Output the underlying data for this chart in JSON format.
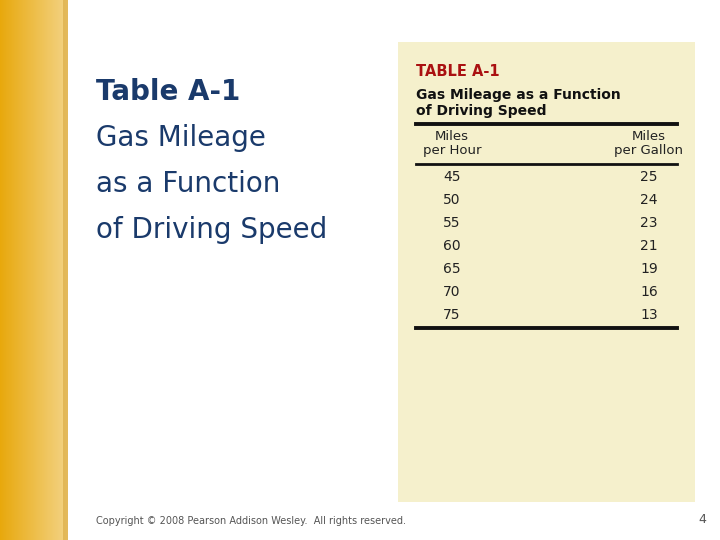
{
  "slide_bg": "#ffffff",
  "left_strip_color": "#e8a800",
  "title_line1": "Table A-1",
  "title_line2": "Gas Mileage",
  "title_line3": "as a Function",
  "title_line4": "of Driving Speed",
  "title_color": "#1a3a6b",
  "table_label": "TABLE A-1",
  "table_label_color": "#aa1111",
  "table_subtitle_line1": "Gas Mileage as a Function",
  "table_subtitle_line2": "of Driving Speed",
  "table_subtitle_color": "#111111",
  "col1_header_line1": "Miles",
  "col1_header_line2": "per Hour",
  "col2_header_line1": "Miles",
  "col2_header_line2": "per Gallon",
  "header_color": "#222222",
  "rows": [
    [
      45,
      25
    ],
    [
      50,
      24
    ],
    [
      55,
      23
    ],
    [
      60,
      21
    ],
    [
      65,
      19
    ],
    [
      70,
      16
    ],
    [
      75,
      13
    ]
  ],
  "data_color": "#222222",
  "table_bg": "#f5f0cc",
  "footer_text": "Copyright © 2008 Pearson Addison Wesley.  All rights reserved.",
  "footer_color": "#555555",
  "page_number": "4",
  "thick_line_color": "#111111"
}
